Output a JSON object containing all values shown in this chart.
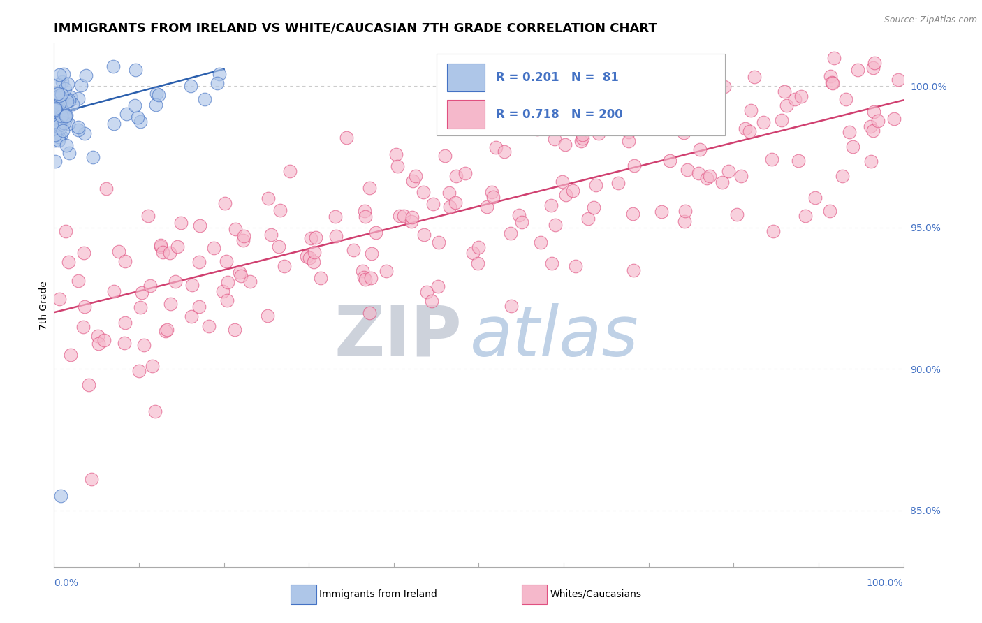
{
  "title": "IMMIGRANTS FROM IRELAND VS WHITE/CAUCASIAN 7TH GRADE CORRELATION CHART",
  "source_text": "Source: ZipAtlas.com",
  "ylabel": "7th Grade",
  "ylabel_right_ticks": [
    85.0,
    90.0,
    95.0,
    100.0
  ],
  "xlim": [
    0.0,
    100.0
  ],
  "ylim": [
    83.0,
    101.5
  ],
  "blue_color": "#aec6e8",
  "blue_edge_color": "#4472c4",
  "blue_line_color": "#2b5fad",
  "pink_color": "#f5b8cb",
  "pink_edge_color": "#e05080",
  "pink_line_color": "#d04070",
  "legend_blue_r": "R = 0.201",
  "legend_blue_n": "N =  81",
  "legend_pink_r": "R = 0.718",
  "legend_pink_n": "N = 200",
  "watermark_zip_color": "#c8cdd8",
  "watermark_atlas_color": "#b8cce4",
  "background_color": "#ffffff",
  "grid_color": "#cccccc",
  "title_fontsize": 13,
  "source_fontsize": 9,
  "tick_fontsize": 10,
  "legend_fontsize": 12,
  "ylabel_fontsize": 10
}
